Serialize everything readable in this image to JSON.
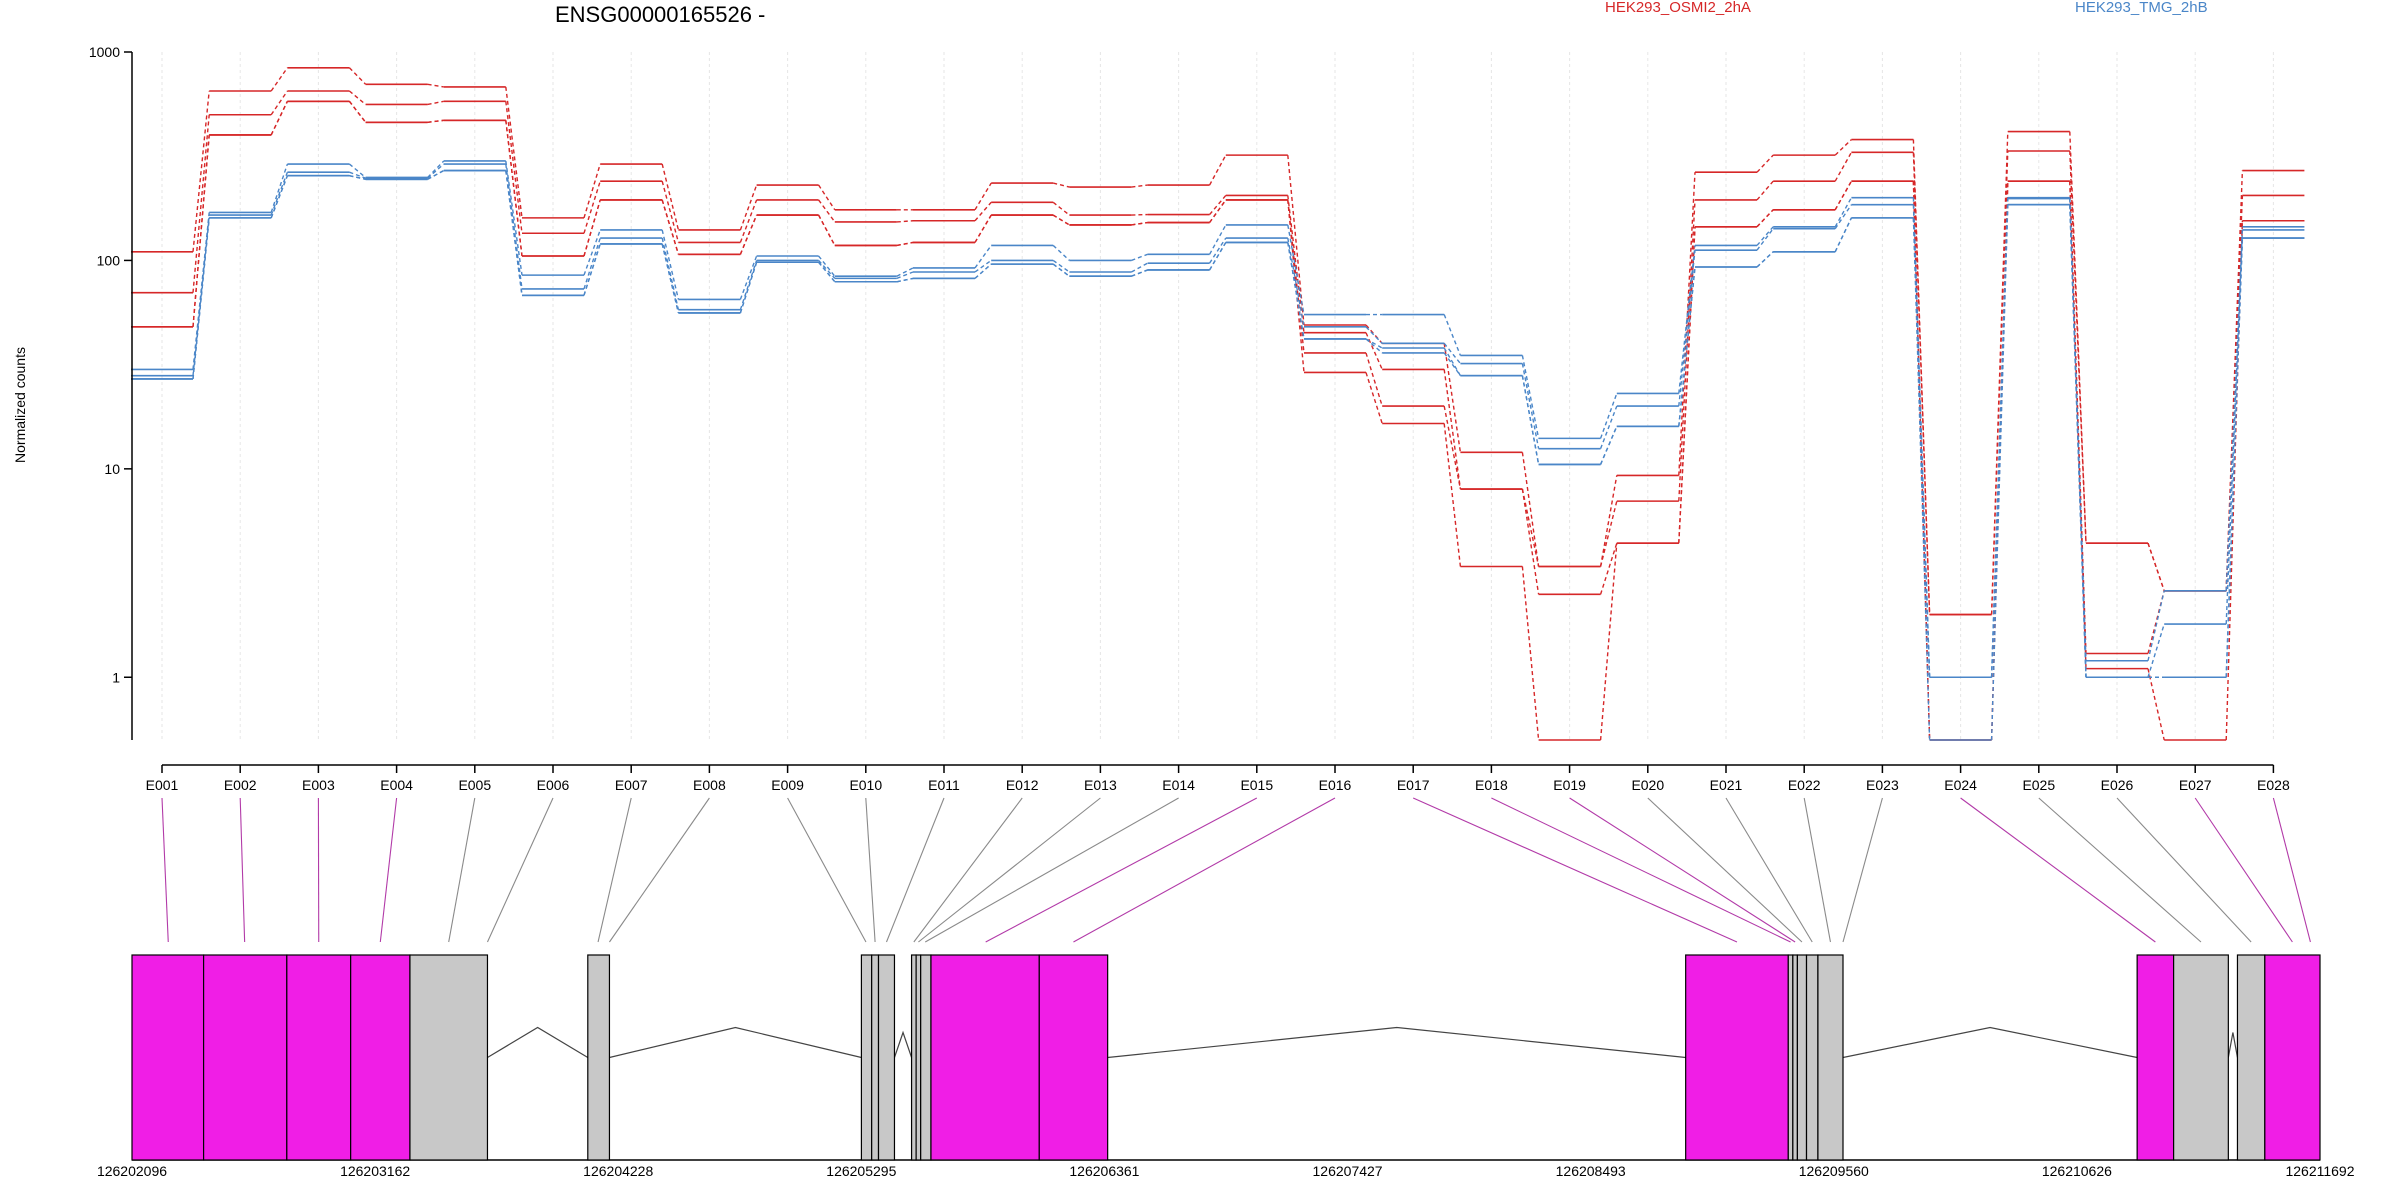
{
  "chart_data": {
    "type": "line",
    "title": "ENSG00000165526 -",
    "ylabel": "Normalized counts",
    "xlabel": "",
    "yscale": "log",
    "ylim": [
      0.5,
      1000
    ],
    "yticks": [
      "1000",
      "100",
      "10",
      "1"
    ],
    "grid": "vertical",
    "legend_position": "top",
    "categories": [
      "E001",
      "E002",
      "E003",
      "E004",
      "E005",
      "E006",
      "E007",
      "E008",
      "E009",
      "E010",
      "E011",
      "E012",
      "E013",
      "E014",
      "E015",
      "E016",
      "E017",
      "E018",
      "E019",
      "E020",
      "E021",
      "E022",
      "E023",
      "E024",
      "E025",
      "E026",
      "E027",
      "E028"
    ],
    "series": [
      {
        "name": "HEK293_OSMI2_2hA",
        "color": "#d62728",
        "values": [
          110,
          650,
          840,
          700,
          680,
          160,
          290,
          140,
          230,
          175,
          175,
          235,
          225,
          230,
          320,
          49,
          40,
          12,
          3.4,
          9.3,
          265,
          320,
          380,
          2.0,
          415,
          4.4,
          2.6,
          270
        ]
      },
      {
        "name": "",
        "color": "#d62728",
        "values": [
          70,
          500,
          650,
          560,
          580,
          135,
          240,
          122,
          195,
          153,
          155,
          190,
          165,
          166,
          205,
          45,
          30,
          8.0,
          3.4,
          7.0,
          195,
          240,
          330,
          2.0,
          335,
          4.4,
          2.6,
          205
        ]
      },
      {
        "name": "",
        "color": "#d62728",
        "values": [
          48,
          400,
          580,
          460,
          470,
          105,
          195,
          107,
          165,
          118,
          122,
          165,
          148,
          152,
          195,
          36,
          20,
          8.0,
          2.5,
          4.4,
          145,
          175,
          240,
          0.5,
          240,
          1.3,
          2.6,
          155
        ]
      },
      {
        "name": "",
        "color": "#d62728",
        "values": [
          48,
          400,
          580,
          460,
          470,
          105,
          195,
          107,
          165,
          118,
          122,
          165,
          148,
          152,
          195,
          29,
          16.5,
          3.4,
          0.5,
          4.4,
          145,
          175,
          240,
          0.5,
          240,
          1.1,
          0.5,
          155
        ]
      },
      {
        "name": "HEK293_TMG_2hB",
        "color": "#4a86c8",
        "values": [
          30,
          170,
          290,
          250,
          300,
          85,
          140,
          65,
          105,
          84,
          92,
          118,
          100,
          107,
          148,
          55,
          55,
          35,
          14,
          23,
          118,
          145,
          200,
          1.0,
          200,
          1.2,
          2.6,
          145
        ]
      },
      {
        "name": "",
        "color": "#4a86c8",
        "values": [
          28,
          165,
          265,
          248,
          290,
          73,
          128,
          58,
          100,
          82,
          88,
          100,
          88,
          97,
          128,
          48,
          40,
          32,
          12.5,
          20,
          112,
          142,
          185,
          1.0,
          198,
          1.0,
          1.8,
          140
        ]
      },
      {
        "name": "",
        "color": "#4a86c8",
        "values": [
          27,
          160,
          255,
          245,
          270,
          68,
          120,
          56,
          98,
          79,
          82,
          96,
          84,
          90,
          122,
          42,
          38,
          28,
          10.5,
          16,
          93,
          110,
          160,
          1.0,
          185,
          1.0,
          1.0,
          128
        ]
      },
      {
        "name": "",
        "color": "#4a86c8",
        "values": [
          27,
          160,
          255,
          245,
          270,
          68,
          120,
          56,
          98,
          79,
          82,
          96,
          84,
          90,
          122,
          42,
          36,
          28,
          10.5,
          16,
          93,
          110,
          160,
          0.5,
          185,
          1.0,
          1.0,
          128
        ]
      }
    ],
    "gene_model": {
      "coordinate_ticks": [
        "126202096",
        "126203162",
        "126204228",
        "126205295",
        "126206361",
        "126207427",
        "126208493",
        "126209560",
        "126210626",
        "126211692"
      ],
      "xlim": [
        126202096,
        126211692
      ],
      "feature_colors": {
        "highlighted": "#f01ee6",
        "normal": "#c8c8c8"
      },
      "exons": [
        {
          "id": "E001",
          "start": 126202096,
          "end": 126202410,
          "highlight": true
        },
        {
          "id": "E002",
          "start": 126202410,
          "end": 126202775,
          "highlight": true
        },
        {
          "id": "E003",
          "start": 126202775,
          "end": 126203055,
          "highlight": true
        },
        {
          "id": "E004",
          "start": 126203055,
          "end": 126203315,
          "highlight": true
        },
        {
          "id": "E005",
          "start": 126203315,
          "end": 126203655,
          "highlight": false
        },
        {
          "id": "E007",
          "start": 126204095,
          "end": 126204190,
          "highlight": false
        },
        {
          "id": "E009",
          "start": 126205295,
          "end": 126205340,
          "highlight": false
        },
        {
          "id": "E010",
          "start": 126205340,
          "end": 126205370,
          "highlight": false
        },
        {
          "id": "E011",
          "start": 126205370,
          "end": 126205440,
          "highlight": false
        },
        {
          "id": "E012",
          "start": 126205515,
          "end": 126205535,
          "highlight": false
        },
        {
          "id": "E013",
          "start": 126205535,
          "end": 126205555,
          "highlight": false
        },
        {
          "id": "E014",
          "start": 126205555,
          "end": 126205600,
          "highlight": false
        },
        {
          "id": "E015",
          "start": 126205600,
          "end": 126206075,
          "highlight": true
        },
        {
          "id": "E016",
          "start": 126206075,
          "end": 126206375,
          "highlight": true
        },
        {
          "id": "E018",
          "start": 126208910,
          "end": 126209360,
          "highlight": true
        },
        {
          "id": "E019",
          "start": 126209360,
          "end": 126209380,
          "highlight": false
        },
        {
          "id": "E020",
          "start": 126209380,
          "end": 126209400,
          "highlight": false
        },
        {
          "id": "E021",
          "start": 126209400,
          "end": 126209440,
          "highlight": false
        },
        {
          "id": "E022",
          "start": 126209440,
          "end": 126209490,
          "highlight": false
        },
        {
          "id": "E023",
          "start": 126209490,
          "end": 126209600,
          "highlight": false
        },
        {
          "id": "E024",
          "start": 126210890,
          "end": 126211050,
          "highlight": true
        },
        {
          "id": "E025",
          "start": 126211050,
          "end": 126211290,
          "highlight": false
        },
        {
          "id": "E027",
          "start": 126211330,
          "end": 126211450,
          "highlight": false
        },
        {
          "id": "E028",
          "start": 126211450,
          "end": 126211692,
          "highlight": true
        }
      ],
      "connectors": [
        {
          "feature": "E001",
          "pos": 126202255,
          "highlight": true
        },
        {
          "feature": "E002",
          "pos": 126202590,
          "highlight": true
        },
        {
          "feature": "E003",
          "pos": 126202915,
          "highlight": true
        },
        {
          "feature": "E004",
          "pos": 126203185,
          "highlight": true
        },
        {
          "feature": "E005",
          "pos": 126203485,
          "highlight": false
        },
        {
          "feature": "E006",
          "pos": 126203655,
          "highlight": false
        },
        {
          "feature": "E007",
          "pos": 126204140,
          "highlight": false
        },
        {
          "feature": "E008",
          "pos": 126204190,
          "highlight": false
        },
        {
          "feature": "E009",
          "pos": 126205315,
          "highlight": false
        },
        {
          "feature": "E010",
          "pos": 126205355,
          "highlight": false
        },
        {
          "feature": "E011",
          "pos": 126205405,
          "highlight": false
        },
        {
          "feature": "E012",
          "pos": 126205525,
          "highlight": false
        },
        {
          "feature": "E013",
          "pos": 126205545,
          "highlight": false
        },
        {
          "feature": "E014",
          "pos": 126205575,
          "highlight": false
        },
        {
          "feature": "E015",
          "pos": 126205840,
          "highlight": true
        },
        {
          "feature": "E016",
          "pos": 126206225,
          "highlight": true
        },
        {
          "feature": "E017",
          "pos": 126209135,
          "highlight": true
        },
        {
          "feature": "E018",
          "pos": 126209370,
          "highlight": true
        },
        {
          "feature": "E019",
          "pos": 126209390,
          "highlight": true
        },
        {
          "feature": "E020",
          "pos": 126209420,
          "highlight": false
        },
        {
          "feature": "E021",
          "pos": 126209465,
          "highlight": false
        },
        {
          "feature": "E022",
          "pos": 126209545,
          "highlight": false
        },
        {
          "feature": "E023",
          "pos": 126209600,
          "highlight": false
        },
        {
          "feature": "E024",
          "pos": 126210970,
          "highlight": true
        },
        {
          "feature": "E025",
          "pos": 126211170,
          "highlight": false
        },
        {
          "feature": "E026",
          "pos": 126211390,
          "highlight": false
        },
        {
          "feature": "E027",
          "pos": 126211571,
          "highlight": true
        },
        {
          "feature": "E028",
          "pos": 126211650,
          "highlight": true
        }
      ]
    }
  }
}
